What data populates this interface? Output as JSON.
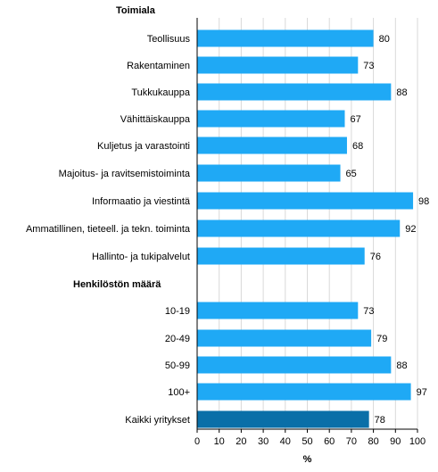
{
  "chart_data": {
    "type": "bar",
    "orientation": "horizontal",
    "xlabel": "%",
    "xlim": [
      0,
      100
    ],
    "xticks": [
      "0",
      "10",
      "20",
      "30",
      "40",
      "50",
      "60",
      "70",
      "80",
      "90",
      "100"
    ],
    "grid": true,
    "sections": [
      {
        "label": "Toimiala",
        "categories": [
          "Teollisuus",
          "Rakentaminen",
          "Tukkukauppa",
          "Vähittäiskauppa",
          "Kuljetus ja varastointi",
          "Majoitus- ja ravitsemistoiminta",
          "Informaatio ja viestintä",
          "Ammatillinen, tieteell. ja tekn. toiminta",
          "Hallinto- ja tukipalvelut"
        ],
        "values": [
          80,
          73,
          88,
          67,
          68,
          65,
          98,
          92,
          76
        ]
      },
      {
        "label": "Henkilöstön määrä",
        "categories": [
          "10-19",
          "20-49",
          "50-99",
          "100+",
          "Kaikki yritykset"
        ],
        "values": [
          73,
          79,
          88,
          97,
          78
        ]
      }
    ],
    "colors": {
      "bar": "#1fa9f5",
      "highlight_bar": "#0a6fa8",
      "grid": "#d9d9d9"
    },
    "highlight_category": "Kaikki yritykset"
  }
}
